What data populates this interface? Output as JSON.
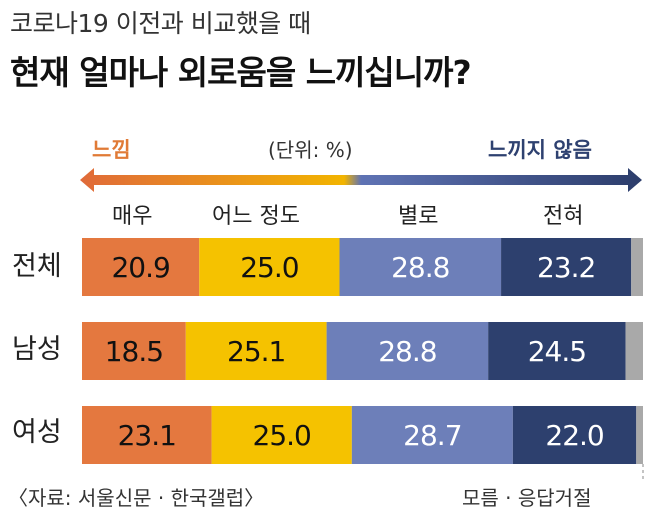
{
  "subtitle": "코로나19 이전과 비교했을 때",
  "title": "현재 얼마나 외로움을 느끼십니까?",
  "scale": {
    "left_label": "느낌",
    "unit": "(단위: %)",
    "right_label": "느끼지 않음"
  },
  "footer": {
    "source": "〈자료: 서울신문 · 한국갤럽〉",
    "note": "모름 · 응답거절"
  },
  "colors": {
    "orange": "#e4783f",
    "yellow": "#f5c200",
    "blue": "#6d7fb9",
    "navy": "#2d406e",
    "gray": "#a9a9a9",
    "arrow_left": "#e07a36",
    "arrow_right": "#2e4170"
  },
  "chart_data": {
    "type": "bar",
    "orientation": "horizontal-stacked",
    "categories": [
      "전체",
      "남성",
      "여성"
    ],
    "series": [
      {
        "name": "매우",
        "values": [
          20.9,
          18.5,
          23.1
        ]
      },
      {
        "name": "어느 정도",
        "values": [
          25.0,
          25.1,
          25.0
        ]
      },
      {
        "name": "별로",
        "values": [
          28.8,
          28.8,
          28.7
        ]
      },
      {
        "name": "전혀",
        "values": [
          23.2,
          24.5,
          22.0
        ]
      },
      {
        "name": "모름 · 응답거절",
        "values": [
          2.1,
          3.1,
          1.2
        ]
      }
    ],
    "labels": [
      [
        "20.9",
        "25.0",
        "28.8",
        "23.2"
      ],
      [
        "18.5",
        "25.1",
        "28.8",
        "24.5"
      ],
      [
        "23.1",
        "25.0",
        "28.7",
        "22.0"
      ]
    ],
    "xlim": [
      0,
      100
    ],
    "grid": false
  }
}
